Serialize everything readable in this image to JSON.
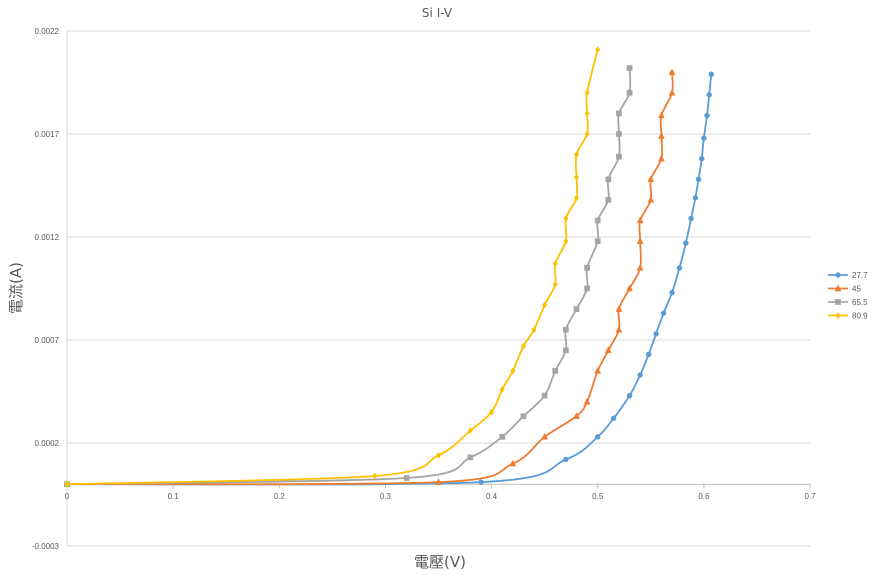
{
  "chart_data": {
    "type": "scatter",
    "title": "Si I-V",
    "xlabel": "電壓(V)",
    "ylabel": "電流(A)",
    "xlim": [
      0,
      0.7
    ],
    "ylim": [
      -0.0003,
      0.0022
    ],
    "x_ticks": [
      "0",
      "0.1",
      "0.2",
      "0.3",
      "0.4",
      "0.5",
      "0.6",
      "0.7"
    ],
    "y_ticks": [
      "-0.0003",
      "0.0002",
      "0.0007",
      "0.0012",
      "0.0017",
      "0.0022"
    ],
    "grid": "horizontal",
    "legend_position": "right",
    "series": [
      {
        "name": "27.7",
        "color": "#5B9BD5",
        "marker": "circle",
        "points": [
          [
            0,
            0
          ],
          [
            0.39,
            1e-05
          ],
          [
            0.47,
            0.00012
          ],
          [
            0.5,
            0.00023
          ],
          [
            0.515,
            0.00032
          ],
          [
            0.53,
            0.00043
          ],
          [
            0.54,
            0.00053
          ],
          [
            0.548,
            0.00063
          ],
          [
            0.555,
            0.00073
          ],
          [
            0.562,
            0.00083
          ],
          [
            0.57,
            0.00093
          ],
          [
            0.577,
            0.00105
          ],
          [
            0.583,
            0.00117
          ],
          [
            0.588,
            0.00129
          ],
          [
            0.592,
            0.00139
          ],
          [
            0.595,
            0.00148
          ],
          [
            0.598,
            0.00158
          ],
          [
            0.6,
            0.00168
          ],
          [
            0.603,
            0.00179
          ],
          [
            0.605,
            0.00189
          ],
          [
            0.607,
            0.00199
          ]
        ]
      },
      {
        "name": "45",
        "color": "#ED7D31",
        "marker": "triangle",
        "points": [
          [
            0,
            0
          ],
          [
            0.35,
            1e-05
          ],
          [
            0.42,
            0.0001
          ],
          [
            0.45,
            0.00023
          ],
          [
            0.48,
            0.00033
          ],
          [
            0.49,
            0.0004
          ],
          [
            0.5,
            0.00055
          ],
          [
            0.51,
            0.00065
          ],
          [
            0.52,
            0.00075
          ],
          [
            0.52,
            0.00085
          ],
          [
            0.53,
            0.00095
          ],
          [
            0.54,
            0.00105
          ],
          [
            0.54,
            0.00118
          ],
          [
            0.54,
            0.00128
          ],
          [
            0.55,
            0.00138
          ],
          [
            0.55,
            0.00148
          ],
          [
            0.56,
            0.00158
          ],
          [
            0.56,
            0.00169
          ],
          [
            0.56,
            0.00179
          ],
          [
            0.57,
            0.0019
          ],
          [
            0.57,
            0.002
          ]
        ]
      },
      {
        "name": "65.5",
        "color": "#A5A5A5",
        "marker": "square",
        "points": [
          [
            0,
            0
          ],
          [
            0.32,
            3e-05
          ],
          [
            0.38,
            0.00013
          ],
          [
            0.41,
            0.00023
          ],
          [
            0.43,
            0.00033
          ],
          [
            0.45,
            0.00043
          ],
          [
            0.46,
            0.00055
          ],
          [
            0.47,
            0.00065
          ],
          [
            0.47,
            0.00075
          ],
          [
            0.48,
            0.00085
          ],
          [
            0.49,
            0.00095
          ],
          [
            0.49,
            0.00105
          ],
          [
            0.5,
            0.00118
          ],
          [
            0.5,
            0.00128
          ],
          [
            0.51,
            0.00138
          ],
          [
            0.51,
            0.00148
          ],
          [
            0.52,
            0.00159
          ],
          [
            0.52,
            0.0017
          ],
          [
            0.52,
            0.0018
          ],
          [
            0.53,
            0.0019
          ],
          [
            0.53,
            0.00202
          ]
        ]
      },
      {
        "name": "80.9",
        "color": "#FFC000",
        "marker": "diamond",
        "points": [
          [
            0,
            0
          ],
          [
            0.29,
            4e-05
          ],
          [
            0.35,
            0.00014
          ],
          [
            0.38,
            0.00026
          ],
          [
            0.4,
            0.00035
          ],
          [
            0.41,
            0.00046
          ],
          [
            0.42,
            0.00055
          ],
          [
            0.43,
            0.00067
          ],
          [
            0.44,
            0.00075
          ],
          [
            0.45,
            0.00087
          ],
          [
            0.46,
            0.00097
          ],
          [
            0.46,
            0.00107
          ],
          [
            0.47,
            0.00118
          ],
          [
            0.47,
            0.00129
          ],
          [
            0.48,
            0.00139
          ],
          [
            0.48,
            0.00149
          ],
          [
            0.48,
            0.0016
          ],
          [
            0.49,
            0.0017
          ],
          [
            0.49,
            0.0018
          ],
          [
            0.49,
            0.0019
          ],
          [
            0.5,
            0.00211
          ]
        ]
      }
    ]
  }
}
